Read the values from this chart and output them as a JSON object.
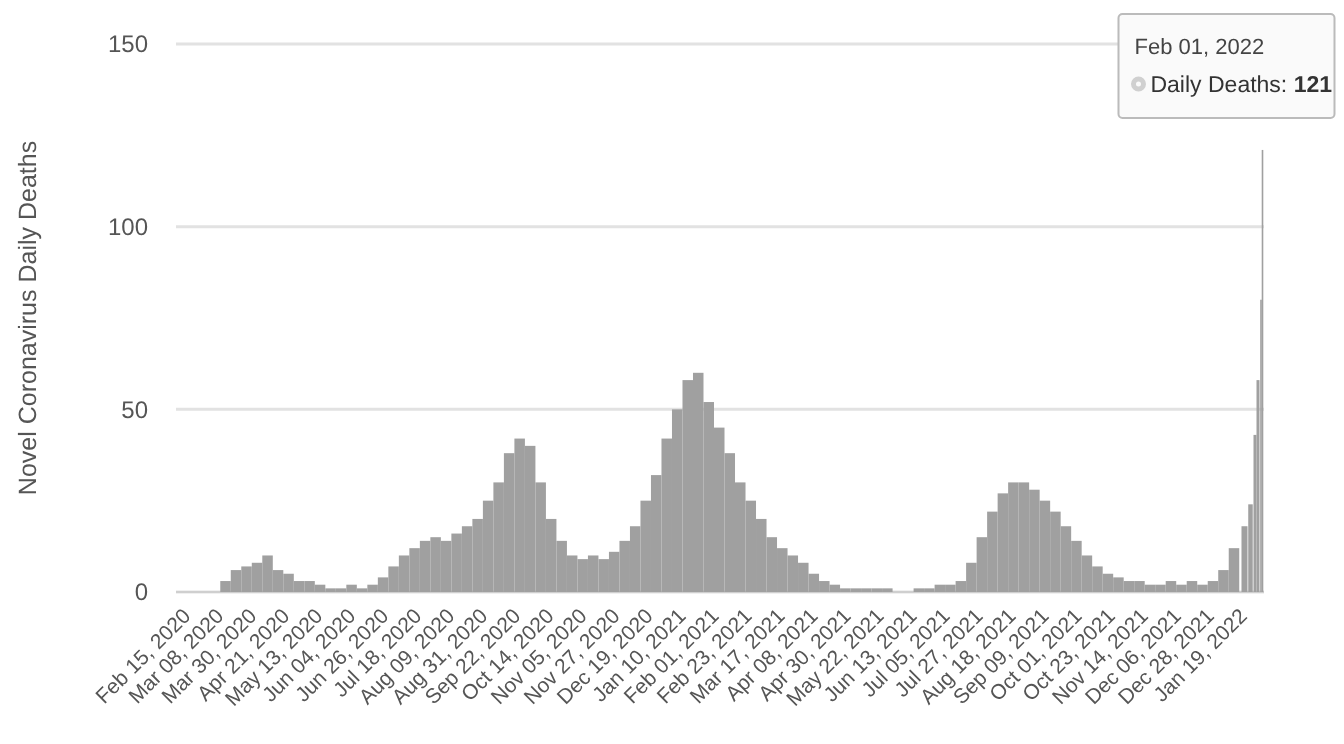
{
  "chart_data": {
    "type": "bar",
    "ylabel": "Novel Coronavirus Daily Deaths",
    "x": [
      "2020-03-12",
      "2020-03-19",
      "2020-03-26",
      "2020-04-02",
      "2020-04-09",
      "2020-04-16",
      "2020-04-23",
      "2020-04-30",
      "2020-05-07",
      "2020-05-14",
      "2020-05-21",
      "2020-05-28",
      "2020-06-04",
      "2020-06-11",
      "2020-06-18",
      "2020-06-25",
      "2020-07-02",
      "2020-07-09",
      "2020-07-16",
      "2020-07-23",
      "2020-07-30",
      "2020-08-06",
      "2020-08-13",
      "2020-08-20",
      "2020-08-27",
      "2020-09-03",
      "2020-09-10",
      "2020-09-17",
      "2020-09-24",
      "2020-10-01",
      "2020-10-08",
      "2020-10-15",
      "2020-10-22",
      "2020-10-29",
      "2020-11-05",
      "2020-11-12",
      "2020-11-19",
      "2020-11-26",
      "2020-12-03",
      "2020-12-10",
      "2020-12-17",
      "2020-12-24",
      "2020-12-31",
      "2021-01-07",
      "2021-01-14",
      "2021-01-21",
      "2021-01-28",
      "2021-02-04",
      "2021-02-11",
      "2021-02-18",
      "2021-02-25",
      "2021-03-04",
      "2021-03-11",
      "2021-03-18",
      "2021-03-25",
      "2021-04-01",
      "2021-04-08",
      "2021-04-15",
      "2021-04-22",
      "2021-04-29",
      "2021-05-06",
      "2021-05-13",
      "2021-05-20",
      "2021-05-27",
      "2021-06-03",
      "2021-06-10",
      "2021-06-17",
      "2021-06-24",
      "2021-07-01",
      "2021-07-08",
      "2021-07-15",
      "2021-07-22",
      "2021-07-29",
      "2021-08-05",
      "2021-08-12",
      "2021-08-19",
      "2021-08-26",
      "2021-09-02",
      "2021-09-09",
      "2021-09-16",
      "2021-09-23",
      "2021-09-30",
      "2021-10-07",
      "2021-10-14",
      "2021-10-21",
      "2021-10-28",
      "2021-11-04",
      "2021-11-11",
      "2021-11-18",
      "2021-11-25",
      "2021-12-02",
      "2021-12-09",
      "2021-12-16",
      "2021-12-23",
      "2021-12-30",
      "2022-01-06",
      "2022-01-13",
      "2022-01-20",
      "2022-01-24",
      "2022-01-27",
      "2022-01-29",
      "2022-01-31",
      "2022-02-01"
    ],
    "values": [
      3,
      6,
      7,
      8,
      10,
      6,
      5,
      3,
      3,
      2,
      1,
      1,
      2,
      1,
      2,
      4,
      7,
      10,
      12,
      14,
      15,
      14,
      16,
      18,
      20,
      25,
      30,
      38,
      42,
      40,
      30,
      20,
      14,
      10,
      9,
      10,
      9,
      11,
      14,
      18,
      25,
      32,
      42,
      50,
      58,
      60,
      52,
      45,
      38,
      30,
      25,
      20,
      15,
      12,
      10,
      8,
      5,
      3,
      2,
      1,
      1,
      1,
      1,
      1,
      0,
      0,
      1,
      1,
      2,
      2,
      3,
      8,
      15,
      22,
      27,
      30,
      30,
      28,
      25,
      22,
      18,
      14,
      10,
      7,
      5,
      4,
      3,
      3,
      2,
      2,
      3,
      2,
      3,
      2,
      3,
      6,
      12,
      18,
      24,
      43,
      58,
      80,
      121
    ],
    "color": "#a0a0a0",
    "xlim": [
      "2020-02-08",
      "2022-02-02"
    ],
    "xticks": [
      {
        "value": "2020-02-15",
        "label": "Feb 15, 2020"
      },
      {
        "value": "2020-03-08",
        "label": "Mar 08, 2020"
      },
      {
        "value": "2020-03-30",
        "label": "Mar 30, 2020"
      },
      {
        "value": "2020-04-21",
        "label": "Apr 21, 2020"
      },
      {
        "value": "2020-05-13",
        "label": "May 13, 2020"
      },
      {
        "value": "2020-06-04",
        "label": "Jun 04, 2020"
      },
      {
        "value": "2020-06-26",
        "label": "Jun 26, 2020"
      },
      {
        "value": "2020-07-18",
        "label": "Jul 18, 2020"
      },
      {
        "value": "2020-08-09",
        "label": "Aug 09, 2020"
      },
      {
        "value": "2020-08-31",
        "label": "Aug 31, 2020"
      },
      {
        "value": "2020-09-22",
        "label": "Sep 22, 2020"
      },
      {
        "value": "2020-10-14",
        "label": "Oct 14, 2020"
      },
      {
        "value": "2020-11-05",
        "label": "Nov 05, 2020"
      },
      {
        "value": "2020-11-27",
        "label": "Nov 27, 2020"
      },
      {
        "value": "2020-12-19",
        "label": "Dec 19, 2020"
      },
      {
        "value": "2021-01-10",
        "label": "Jan 10, 2021"
      },
      {
        "value": "2021-02-01",
        "label": "Feb 01, 2021"
      },
      {
        "value": "2021-02-23",
        "label": "Feb 23, 2021"
      },
      {
        "value": "2021-03-17",
        "label": "Mar 17, 2021"
      },
      {
        "value": "2021-04-08",
        "label": "Apr 08, 2021"
      },
      {
        "value": "2021-04-30",
        "label": "Apr 30, 2021"
      },
      {
        "value": "2021-05-22",
        "label": "May 22, 2021"
      },
      {
        "value": "2021-06-13",
        "label": "Jun 13, 2021"
      },
      {
        "value": "2021-07-05",
        "label": "Jul 05, 2021"
      },
      {
        "value": "2021-07-27",
        "label": "Jul 27, 2021"
      },
      {
        "value": "2021-08-18",
        "label": "Aug 18, 2021"
      },
      {
        "value": "2021-09-09",
        "label": "Sep 09, 2021"
      },
      {
        "value": "2021-10-01",
        "label": "Oct 01, 2021"
      },
      {
        "value": "2021-10-23",
        "label": "Oct 23, 2021"
      },
      {
        "value": "2021-11-14",
        "label": "Nov 14, 2021"
      },
      {
        "value": "2021-12-06",
        "label": "Dec 06, 2021"
      },
      {
        "value": "2021-12-28",
        "label": "Dec 28, 2021"
      },
      {
        "value": "2022-01-19",
        "label": "Jan 19, 2022"
      }
    ],
    "ylim": [
      0,
      150
    ],
    "yticks": [
      0,
      50,
      100,
      150
    ],
    "grid": "y",
    "annotations": [
      {
        "text": "Feb 01, 2022\nDaily Deaths: 121",
        "x": "2022-02-01",
        "y": 121
      }
    ]
  }
}
